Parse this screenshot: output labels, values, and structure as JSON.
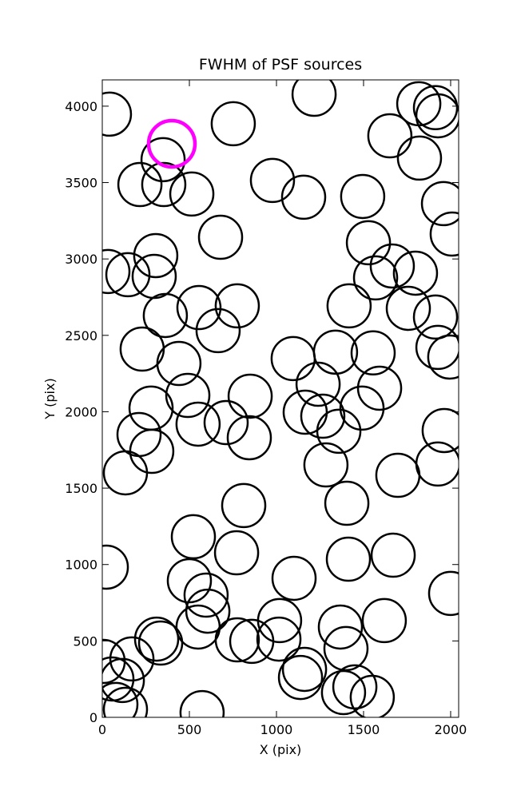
{
  "chart_data": {
    "type": "scatter",
    "title": "FWHM of PSF sources",
    "x_label": "X (pix)",
    "y_label": "Y (pix)",
    "xlim": [
      0,
      2046
    ],
    "ylim": [
      0,
      4172
    ],
    "xticks": [
      0,
      500,
      1000,
      1500,
      2000
    ],
    "yticks": [
      0,
      500,
      1000,
      1500,
      2000,
      2500,
      3000,
      3500,
      4000
    ],
    "series": [
      {
        "color": "#000000",
        "x": [
          41,
          349,
          752,
          1216,
          1817,
          1913,
          1927,
          1651,
          1821,
          216,
          353,
          514,
          977,
          1156,
          1495,
          1959,
          2009,
          679,
          1528,
          307,
          32,
          147,
          298,
          1665,
          1798,
          1569,
          1757,
          555,
          775,
          362,
          1417,
          1913,
          665,
          229,
          1927,
          1995,
          440,
          1096,
          1339,
          1555,
          1239,
          1592,
          491,
          849,
          280,
          1491,
          1165,
          1266,
          550,
          711,
          1358,
          211,
          844,
          1963,
          284,
          1927,
          1284,
          133,
          1697,
          1404,
          812,
          523,
          771,
          23,
          1413,
          1670,
          1101,
          500,
          596,
          2000,
          606,
          1018,
          1619,
          1367,
          550,
          775,
          858,
          1014,
          1399,
          312,
          335,
          170,
          5,
          1161,
          1138,
          115,
          55,
          1450,
          1385,
          1550,
          133,
          573,
          78
        ],
        "values": [
          3948,
          3650,
          3885,
          4078,
          4016,
          3990,
          3937,
          3806,
          3660,
          3487,
          3487,
          3425,
          3514,
          3404,
          3409,
          3362,
          3163,
          3142,
          3106,
          3022,
          2918,
          2897,
          2886,
          2954,
          2907,
          2876,
          2677,
          2682,
          2693,
          2630,
          2693,
          2620,
          2531,
          2410,
          2421,
          2358,
          2316,
          2348,
          2390,
          2385,
          2180,
          2154,
          2107,
          2102,
          2024,
          2024,
          1997,
          1971,
          1919,
          1929,
          1872,
          1851,
          1830,
          1877,
          1741,
          1658,
          1652,
          1600,
          1584,
          1401,
          1386,
          1182,
          1077,
          983,
          1035,
          1061,
          910,
          894,
          800,
          811,
          695,
          633,
          633,
          591,
          591,
          507,
          497,
          512,
          450,
          512,
          486,
          382,
          366,
          314,
          261,
          241,
          251,
          199,
          162,
          131,
          52,
          31,
          84
        ]
      },
      {
        "color": "#ff00ff",
        "x": [
          399
        ],
        "values": [
          3754
        ]
      }
    ]
  }
}
